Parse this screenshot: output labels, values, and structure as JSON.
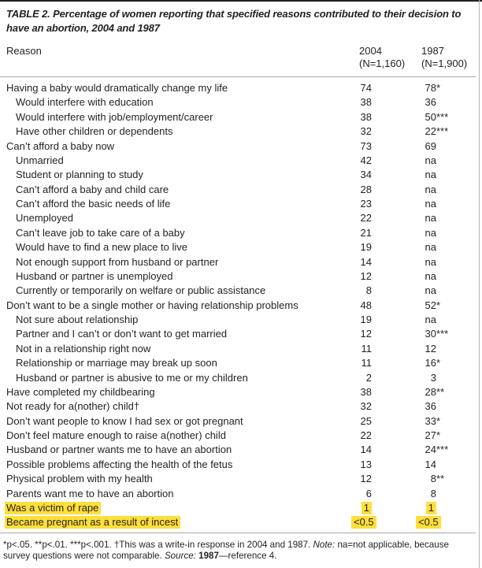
{
  "title": "TABLE 2. Percentage of women reporting that specified reasons contributed to their decision to have an abortion, 2004 and 1987",
  "highlight_color": "#ffdf3b",
  "text_color": "#231f20",
  "header": {
    "reason": "Reason",
    "col2004_year": "2004",
    "col2004_n": "(N=1,160)",
    "col1987_year": "1987",
    "col1987_n": "(N=1,900)"
  },
  "rows": [
    {
      "label": "Having a baby would dramatically change my life",
      "indent": false,
      "v2004": "74",
      "v1987": "78",
      "sig1987": "*",
      "highlight": false
    },
    {
      "label": "Would interfere with education",
      "indent": true,
      "v2004": "38",
      "v1987": "36",
      "sig1987": "",
      "highlight": false
    },
    {
      "label": "Would interfere with job/employment/career",
      "indent": true,
      "v2004": "38",
      "v1987": "50",
      "sig1987": "***",
      "highlight": false
    },
    {
      "label": "Have other children or dependents",
      "indent": true,
      "v2004": "32",
      "v1987": "22",
      "sig1987": "***",
      "highlight": false
    },
    {
      "label": "Can’t afford a baby now",
      "indent": false,
      "v2004": "73",
      "v1987": "69",
      "sig1987": "",
      "highlight": false
    },
    {
      "label": "Unmarried",
      "indent": true,
      "v2004": "42",
      "v1987": "na",
      "sig1987": "",
      "highlight": false
    },
    {
      "label": "Student or planning to study",
      "indent": true,
      "v2004": "34",
      "v1987": "na",
      "sig1987": "",
      "highlight": false
    },
    {
      "label": "Can’t afford a baby and child care",
      "indent": true,
      "v2004": "28",
      "v1987": "na",
      "sig1987": "",
      "highlight": false
    },
    {
      "label": "Can’t afford the basic needs of life",
      "indent": true,
      "v2004": "23",
      "v1987": "na",
      "sig1987": "",
      "highlight": false
    },
    {
      "label": "Unemployed",
      "indent": true,
      "v2004": "22",
      "v1987": "na",
      "sig1987": "",
      "highlight": false
    },
    {
      "label": "Can’t leave job to take care of a baby",
      "indent": true,
      "v2004": "21",
      "v1987": "na",
      "sig1987": "",
      "highlight": false
    },
    {
      "label": "Would have to find a new place to live",
      "indent": true,
      "v2004": "19",
      "v1987": "na",
      "sig1987": "",
      "highlight": false
    },
    {
      "label": "Not enough support from husband or partner",
      "indent": true,
      "v2004": "14",
      "v1987": "na",
      "sig1987": "",
      "highlight": false
    },
    {
      "label": "Husband or partner is unemployed",
      "indent": true,
      "v2004": "12",
      "v1987": "na",
      "sig1987": "",
      "highlight": false
    },
    {
      "label": "Currently or temporarily on welfare or public assistance",
      "indent": true,
      "v2004": "8",
      "v1987": "na",
      "sig1987": "",
      "highlight": false
    },
    {
      "label": "Don’t want to be a single mother or having relationship problems",
      "indent": false,
      "v2004": "48",
      "v1987": "52",
      "sig1987": "*",
      "highlight": false
    },
    {
      "label": "Not sure about relationship",
      "indent": true,
      "v2004": "19",
      "v1987": "na",
      "sig1987": "",
      "highlight": false
    },
    {
      "label": "Partner and I can’t or don’t want to get married",
      "indent": true,
      "v2004": "12",
      "v1987": "30",
      "sig1987": "***",
      "highlight": false
    },
    {
      "label": "Not in a relationship right now",
      "indent": true,
      "v2004": "11",
      "v1987": "12",
      "sig1987": "",
      "highlight": false
    },
    {
      "label": "Relationship or marriage may break up soon",
      "indent": true,
      "v2004": "11",
      "v1987": "16",
      "sig1987": "*",
      "highlight": false
    },
    {
      "label": "Husband or partner is abusive to me or my children",
      "indent": true,
      "v2004": "2",
      "v1987": "3",
      "sig1987": "",
      "highlight": false
    },
    {
      "label": "Have completed my childbearing",
      "indent": false,
      "v2004": "38",
      "v1987": "28",
      "sig1987": "**",
      "highlight": false
    },
    {
      "label": "Not ready for a(nother) child†",
      "indent": false,
      "v2004": "32",
      "v1987": "36",
      "sig1987": "",
      "highlight": false
    },
    {
      "label": "Don’t want people to know I had sex or got pregnant",
      "indent": false,
      "v2004": "25",
      "v1987": "33",
      "sig1987": "*",
      "highlight": false
    },
    {
      "label": "Don’t feel mature enough to raise a(nother) child",
      "indent": false,
      "v2004": "22",
      "v1987": "27",
      "sig1987": "*",
      "highlight": false
    },
    {
      "label": "Husband or partner wants me to have an abortion",
      "indent": false,
      "v2004": "14",
      "v1987": "24",
      "sig1987": "***",
      "highlight": false
    },
    {
      "label": "Possible problems affecting the health of the fetus",
      "indent": false,
      "v2004": "13",
      "v1987": "14",
      "sig1987": "",
      "highlight": false
    },
    {
      "label": "Physical problem with my health",
      "indent": false,
      "v2004": "12",
      "v1987": "8",
      "sig1987": "**",
      "highlight": false
    },
    {
      "label": "Parents want me to have an abortion",
      "indent": false,
      "v2004": "6",
      "v1987": "8",
      "sig1987": "",
      "highlight": false
    },
    {
      "label": "Was a victim of rape",
      "indent": false,
      "v2004": "1",
      "v1987": "1",
      "sig1987": "",
      "highlight": true
    },
    {
      "label": "Became pregnant as a result of incest",
      "indent": false,
      "v2004": "<0.5",
      "v1987": "<0.5",
      "sig1987": "",
      "highlight": true
    }
  ],
  "footnote": {
    "sig_text": "*p<.05. **p<.01. ***p<.001. †This was a write-in response in 2004 and 1987.",
    "note_label": "Note:",
    "note_text": "na=not applicable, because survey questions were not comparable.",
    "source_label": "Source:",
    "source_year": "1987",
    "source_rest": "—reference 4."
  }
}
